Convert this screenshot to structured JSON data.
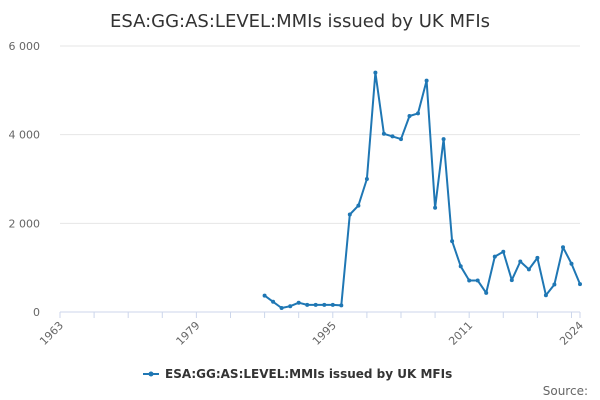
{
  "chart_data": {
    "type": "line",
    "title": "ESA:GG:AS:LEVEL:MMIs issued by UK MFIs",
    "xlim": [
      1963,
      2024
    ],
    "ylim": [
      0,
      6000
    ],
    "x_ticks": [
      1963,
      1979,
      1995,
      2011,
      2024
    ],
    "y_ticks": [
      0,
      2000,
      4000,
      6000
    ],
    "y_tick_labels": [
      "0",
      "2 000",
      "4 000",
      "6 000"
    ],
    "grid": true,
    "legend_position": "bottom-center",
    "series": [
      {
        "name": "ESA:GG:AS:LEVEL:MMIs issued by UK MFIs",
        "color": "#1f77b4",
        "x": [
          1987,
          1988,
          1989,
          1990,
          1991,
          1992,
          1993,
          1994,
          1995,
          1996,
          1997,
          1998,
          1999,
          2000,
          2001,
          2002,
          2003,
          2004,
          2005,
          2006,
          2007,
          2008,
          2009,
          2010,
          2011,
          2012,
          2013,
          2014,
          2015,
          2016,
          2017,
          2018,
          2019,
          2020,
          2021,
          2022,
          2023,
          2024
        ],
        "y": [
          370,
          230,
          90,
          130,
          210,
          160,
          160,
          160,
          160,
          150,
          2200,
          2400,
          3000,
          5400,
          4020,
          3960,
          3900,
          4420,
          4480,
          5220,
          2350,
          3900,
          1600,
          1030,
          710,
          710,
          430,
          1250,
          1360,
          720,
          1140,
          960,
          1220,
          380,
          620,
          1460,
          1090,
          630
        ]
      }
    ]
  },
  "legend": {
    "label": "ESA:GG:AS:LEVEL:MMIs issued by UK MFIs"
  },
  "credits": {
    "source_label": "Source:"
  }
}
